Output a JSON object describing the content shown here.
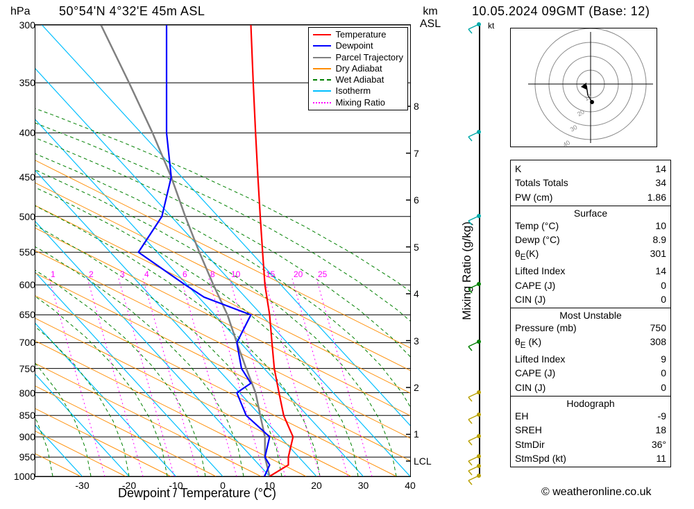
{
  "meta": {
    "location": "50°54'N 4°32'E 45m ASL",
    "datetime": "10.05.2024 09GMT (Base: 12)",
    "credit": "© weatheronline.co.uk"
  },
  "labels": {
    "yLeft": "hPa",
    "yRight1": "km",
    "yRight2": "ASL",
    "x": "Dewpoint / Temperature (°C)",
    "mixing": "Mixing Ratio (g/kg)",
    "lcl": "LCL",
    "kt": "kt"
  },
  "legend": [
    {
      "label": "Temperature",
      "color": "#ff0000",
      "dash": null
    },
    {
      "label": "Dewpoint",
      "color": "#0000ff",
      "dash": null
    },
    {
      "label": "Parcel Trajectory",
      "color": "#808080",
      "dash": null
    },
    {
      "label": "Dry Adiabat",
      "color": "#ff8c00",
      "dash": null
    },
    {
      "label": "Wet Adiabat",
      "color": "#008000",
      "dash": "4,3"
    },
    {
      "label": "Isotherm",
      "color": "#00bfff",
      "dash": null
    },
    {
      "label": "Mixing Ratio",
      "color": "#ff00ff",
      "dash": "2,3"
    }
  ],
  "colors": {
    "temperature": "#ff0000",
    "dewpoint": "#0000ff",
    "parcel": "#808080",
    "dryAdiabat": "#ff8c00",
    "wetAdiabat": "#008000",
    "isotherm": "#00bfff",
    "mixingRatio": "#ff00ff",
    "grid": "#000000"
  },
  "axes": {
    "pressure": {
      "levels": [
        300,
        350,
        400,
        450,
        500,
        550,
        600,
        650,
        700,
        750,
        800,
        850,
        900,
        950,
        1000
      ]
    },
    "altitude": {
      "ticks": [
        1,
        2,
        3,
        4,
        5,
        6,
        7,
        8
      ]
    },
    "temperature": {
      "min": -40,
      "max": 40,
      "ticks": [
        -30,
        -20,
        -10,
        0,
        10,
        20,
        30,
        40
      ]
    },
    "mixingRatioLabels": [
      1,
      2,
      3,
      4,
      6,
      8,
      10,
      15,
      20,
      25
    ]
  },
  "profiles": {
    "temperature": [
      {
        "p": 1000,
        "t": 10
      },
      {
        "p": 970,
        "t": 14
      },
      {
        "p": 950,
        "t": 14
      },
      {
        "p": 900,
        "t": 15
      },
      {
        "p": 850,
        "t": 13
      },
      {
        "p": 800,
        "t": 12
      },
      {
        "p": 750,
        "t": 11
      },
      {
        "p": 700,
        "t": 10.5
      },
      {
        "p": 650,
        "t": 10
      },
      {
        "p": 600,
        "t": 9
      },
      {
        "p": 550,
        "t": 8.5
      },
      {
        "p": 500,
        "t": 8
      },
      {
        "p": 450,
        "t": 7.5
      },
      {
        "p": 400,
        "t": 7
      },
      {
        "p": 350,
        "t": 6.5
      },
      {
        "p": 300,
        "t": 6
      }
    ],
    "dewpoint": [
      {
        "p": 1000,
        "t": 8.9
      },
      {
        "p": 970,
        "t": 10
      },
      {
        "p": 950,
        "t": 9
      },
      {
        "p": 900,
        "t": 10
      },
      {
        "p": 850,
        "t": 5
      },
      {
        "p": 800,
        "t": 3
      },
      {
        "p": 780,
        "t": 6
      },
      {
        "p": 750,
        "t": 4
      },
      {
        "p": 700,
        "t": 3
      },
      {
        "p": 650,
        "t": 6
      },
      {
        "p": 620,
        "t": -4
      },
      {
        "p": 600,
        "t": -8
      },
      {
        "p": 550,
        "t": -18
      },
      {
        "p": 500,
        "t": -13
      },
      {
        "p": 450,
        "t": -11
      },
      {
        "p": 400,
        "t": -12
      },
      {
        "p": 350,
        "t": -12
      },
      {
        "p": 300,
        "t": -12
      }
    ],
    "parcel": [
      {
        "p": 1000,
        "t": 10
      },
      {
        "p": 950,
        "t": 9
      },
      {
        "p": 900,
        "t": 9
      },
      {
        "p": 850,
        "t": 8
      },
      {
        "p": 800,
        "t": 7
      },
      {
        "p": 750,
        "t": 5
      },
      {
        "p": 700,
        "t": 3
      },
      {
        "p": 650,
        "t": 1
      },
      {
        "p": 600,
        "t": -2
      },
      {
        "p": 550,
        "t": -5
      },
      {
        "p": 500,
        "t": -8
      },
      {
        "p": 450,
        "t": -11
      },
      {
        "p": 400,
        "t": -15
      },
      {
        "p": 350,
        "t": -20
      },
      {
        "p": 300,
        "t": -26
      }
    ]
  },
  "windBarbs": [
    {
      "p": 1000,
      "color": "#b8a000"
    },
    {
      "p": 975,
      "color": "#b8a000"
    },
    {
      "p": 950,
      "color": "#b8a000"
    },
    {
      "p": 900,
      "color": "#b8a000"
    },
    {
      "p": 850,
      "color": "#b8a000"
    },
    {
      "p": 800,
      "color": "#b8a000"
    },
    {
      "p": 700,
      "color": "#008000"
    },
    {
      "p": 600,
      "color": "#008000"
    },
    {
      "p": 500,
      "color": "#00aaaa"
    },
    {
      "p": 400,
      "color": "#00aaaa"
    },
    {
      "p": 300,
      "color": "#00aaaa"
    }
  ],
  "indices": {
    "K": 14,
    "TotalsTotals": 34,
    "PW_cm": 1.86,
    "surface": {
      "Temp_C": 10,
      "Dewp_C": 8.9,
      "ThetaE_K": 301,
      "LiftedIndex": 14,
      "CAPE_J": 0,
      "CIN_J": 0
    },
    "mostUnstable": {
      "Pressure_mb": 750,
      "ThetaE_K": 308,
      "LiftedIndex": 9,
      "CAPE_J": 0,
      "CIN_J": 0
    },
    "hodograph": {
      "EH": -9,
      "SREH": 18,
      "StmDir": "36°",
      "StmSpd_kt": 11
    }
  },
  "hodograph": {
    "rings": [
      10,
      20,
      30,
      40
    ],
    "points": [
      {
        "x": -3,
        "y": -1
      },
      {
        "x": -2,
        "y": -8
      },
      {
        "x": 1,
        "y": -13
      }
    ]
  }
}
